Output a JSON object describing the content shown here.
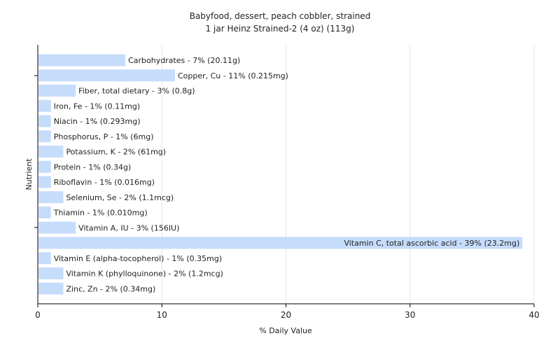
{
  "chart_data": {
    "type": "bar",
    "orientation": "horizontal",
    "title": "Babyfood, dessert, peach cobbler, strained",
    "subtitle": "1 jar Heinz Strained-2 (4 oz) (113g)",
    "xlabel": "% Daily Value",
    "ylabel": "Nutrient",
    "xlim": [
      0,
      40
    ],
    "xticks": [
      0,
      10,
      20,
      30,
      40
    ],
    "grid": true,
    "bar_color": "#c6dcfb",
    "categories": [
      "Carbohydrates",
      "Copper, Cu",
      "Fiber, total dietary",
      "Iron, Fe",
      "Niacin",
      "Phosphorus, P",
      "Potassium, K",
      "Protein",
      "Riboflavin",
      "Selenium, Se",
      "Thiamin",
      "Vitamin A, IU",
      "Vitamin C, total ascorbic acid",
      "Vitamin E (alpha-tocopherol)",
      "Vitamin K (phylloquinone)",
      "Zinc, Zn"
    ],
    "values": [
      7,
      11,
      3,
      1,
      1,
      1,
      2,
      1,
      1,
      2,
      1,
      3,
      39,
      1,
      2,
      2
    ],
    "labels": [
      "Carbohydrates - 7% (20.11g)",
      "Copper, Cu - 11% (0.215mg)",
      "Fiber, total dietary - 3% (0.8g)",
      "Iron, Fe - 1% (0.11mg)",
      "Niacin - 1% (0.293mg)",
      "Phosphorus, P - 1% (6mg)",
      "Potassium, K - 2% (61mg)",
      "Protein - 1% (0.34g)",
      "Riboflavin - 1% (0.016mg)",
      "Selenium, Se - 2% (1.1mcg)",
      "Thiamin - 1% (0.010mg)",
      "Vitamin A, IU - 3% (156IU)",
      "Vitamin C, total ascorbic acid - 39% (23.2mg)",
      "Vitamin E (alpha-tocopherol) - 1% (0.35mg)",
      "Vitamin K (phylloquinone) - 2% (1.2mcg)",
      "Zinc, Zn - 2% (0.34mg)"
    ]
  }
}
